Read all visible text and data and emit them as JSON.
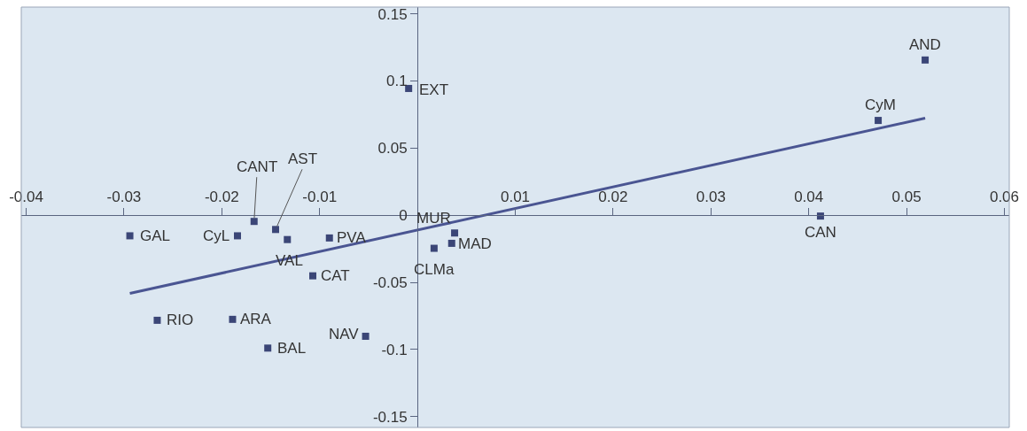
{
  "chart_data": {
    "type": "scatter",
    "xlim": [
      -0.0405,
      0.0605
    ],
    "ylim": [
      -0.158,
      0.155
    ],
    "xticks": [
      -0.04,
      -0.03,
      -0.02,
      -0.01,
      0.01,
      0.02,
      0.03,
      0.04,
      0.05,
      0.06
    ],
    "yticks": [
      -0.15,
      -0.1,
      -0.05,
      0,
      0.05,
      0.1,
      0.15
    ],
    "grid": false,
    "marker": "square",
    "series": [
      {
        "color": "#3b4677",
        "x": [
          -0.0294,
          -0.0184,
          -0.0167,
          -0.0145,
          -0.0133,
          -0.009,
          -0.0107,
          -0.0266,
          -0.0189,
          -0.0153,
          -0.0053,
          -0.0009,
          0.0038,
          0.0035,
          0.0017,
          0.0412,
          0.0471,
          0.0519
        ],
        "values": [
          -0.0153,
          -0.0153,
          -0.0046,
          -0.0106,
          -0.0181,
          -0.0169,
          -0.0451,
          -0.0782,
          -0.0775,
          -0.0989,
          -0.0901,
          0.0944,
          -0.0132,
          -0.0209,
          -0.0246,
          -0.0006,
          0.0706,
          0.1156
        ]
      },
      {
        "type": "line",
        "color": "#4a5592",
        "marker": "none",
        "x": [
          -0.0294,
          0.0519
        ],
        "values": [
          -0.0582,
          0.0723
        ]
      }
    ],
    "annotations": [
      {
        "text": "GAL",
        "x": -0.0294,
        "y": -0.0153
      },
      {
        "text": "CyL",
        "x": -0.0184,
        "y": -0.0153
      },
      {
        "text": "CANT",
        "x": -0.0167,
        "y": -0.0046
      },
      {
        "text": "AST",
        "x": -0.0145,
        "y": -0.0106
      },
      {
        "text": "VAL",
        "x": -0.0133,
        "y": -0.0181
      },
      {
        "text": "PVA",
        "x": -0.009,
        "y": -0.0169
      },
      {
        "text": "CAT",
        "x": -0.0107,
        "y": -0.0451
      },
      {
        "text": "RIO",
        "x": -0.0266,
        "y": -0.0782
      },
      {
        "text": "ARA",
        "x": -0.0189,
        "y": -0.0775
      },
      {
        "text": "BAL",
        "x": -0.0153,
        "y": -0.0989
      },
      {
        "text": "NAV",
        "x": -0.0053,
        "y": -0.0901
      },
      {
        "text": "EXT",
        "x": -0.0009,
        "y": 0.0944
      },
      {
        "text": "MUR",
        "x": 0.0038,
        "y": -0.0132
      },
      {
        "text": "MAD",
        "x": 0.0035,
        "y": -0.0209
      },
      {
        "text": "CLMa",
        "x": 0.0017,
        "y": -0.0246
      },
      {
        "text": "CAN",
        "x": 0.0412,
        "y": -0.0006
      },
      {
        "text": "CyM",
        "x": 0.0471,
        "y": 0.0706
      },
      {
        "text": "AND",
        "x": 0.0519,
        "y": 0.1156
      }
    ]
  }
}
